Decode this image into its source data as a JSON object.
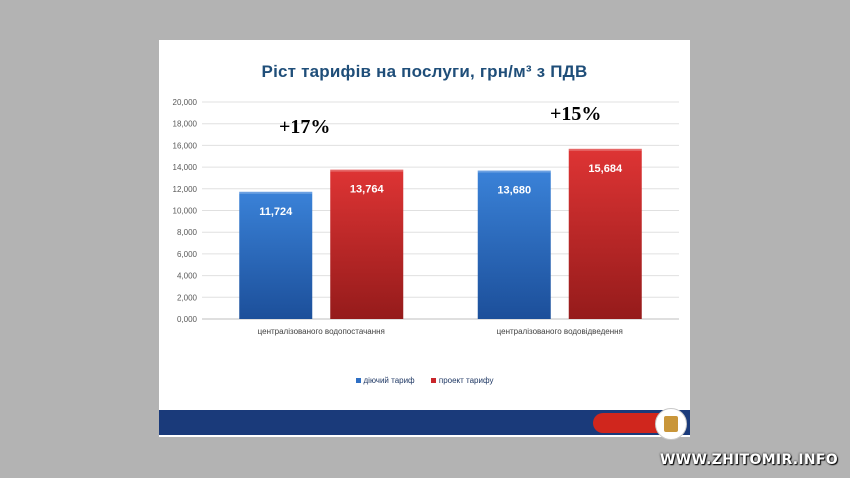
{
  "chart_data": {
    "type": "bar",
    "title": "Ріст тарифів на послуги, грн/м³ з ПДВ",
    "categories": [
      "централізованого водопостачання",
      "централізованого водовідведення"
    ],
    "series": [
      {
        "name": "діючий тариф",
        "values": [
          11.724,
          13.68
        ],
        "labels": [
          "11,724",
          "13,680"
        ],
        "color": "#2e6fc4"
      },
      {
        "name": "проект тарифу",
        "values": [
          13.764,
          15.684
        ],
        "labels": [
          "13,764",
          "15,684"
        ],
        "color": "#c9262b"
      }
    ],
    "ylim": [
      0,
      20
    ],
    "yticks": [
      "0,000",
      "2,000",
      "4,000",
      "6,000",
      "8,000",
      "10,000",
      "12,000",
      "14,000",
      "16,000",
      "18,000",
      "20,000"
    ],
    "grid": true,
    "legend_position": "bottom",
    "annotations": [
      "+17%",
      "+15%"
    ]
  },
  "watermark": "WWW.ZHITOMIR.INFO"
}
